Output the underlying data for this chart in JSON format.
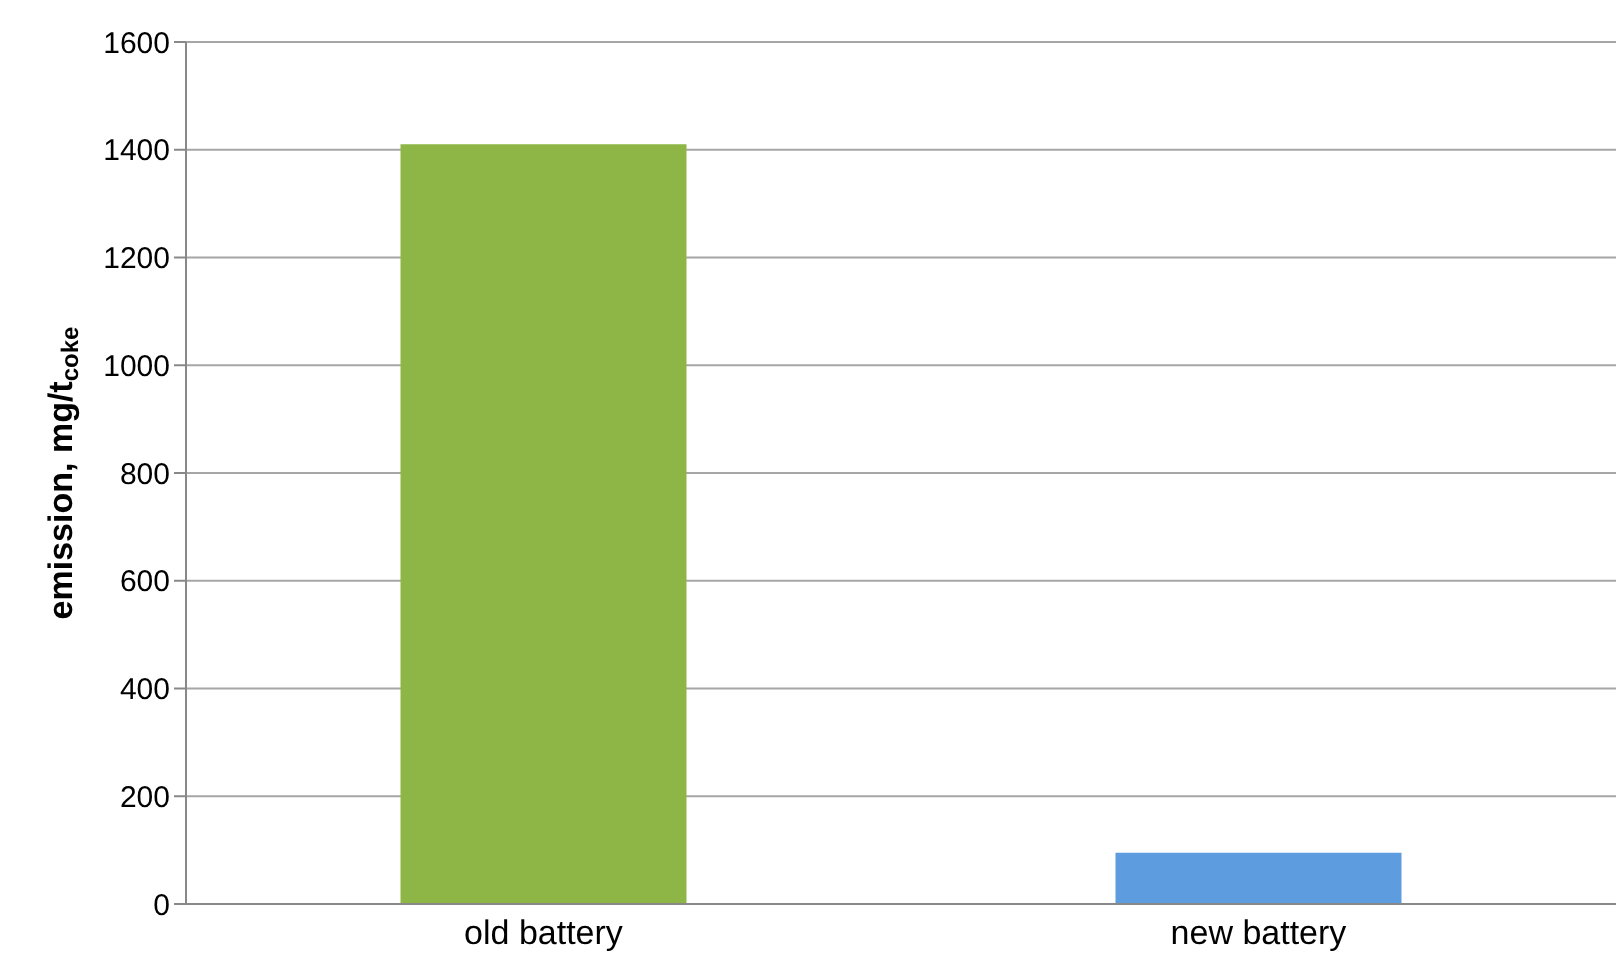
{
  "chart_data": {
    "type": "bar",
    "ylabel": "emission, mg/t$_{coke}$",
    "categories": [
      "old battery",
      "new battery"
    ],
    "values": [
      1410,
      95
    ],
    "colors": [
      "#8db646",
      "#5e9ce0"
    ],
    "ylim": [
      0,
      1600
    ],
    "yticks": [
      0,
      200,
      400,
      600,
      800,
      1000,
      1200,
      1400,
      1600
    ],
    "grid": "y"
  }
}
